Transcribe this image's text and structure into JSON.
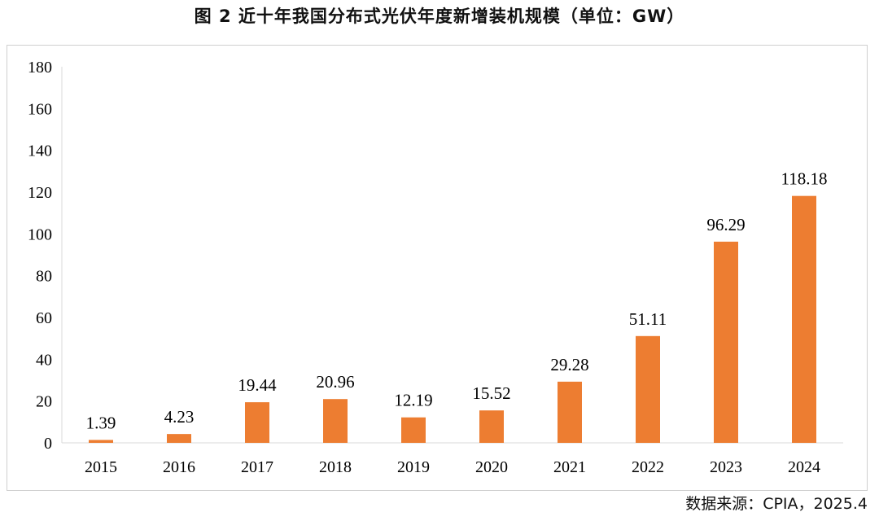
{
  "title": "图 2  近十年我国分布式光伏年度新增装机规模（单位：GW）",
  "source": "数据来源：CPIA，2025.4",
  "chart_data": {
    "type": "bar",
    "categories": [
      "2015",
      "2016",
      "2017",
      "2018",
      "2019",
      "2020",
      "2021",
      "2022",
      "2023",
      "2024"
    ],
    "values": [
      1.39,
      4.23,
      19.44,
      20.96,
      12.19,
      15.52,
      29.28,
      51.11,
      96.29,
      118.18
    ],
    "data_labels": [
      "1.39",
      "4.23",
      "19.44",
      "20.96",
      "12.19",
      "15.52",
      "29.28",
      "51.11",
      "96.29",
      "118.18"
    ],
    "y_ticks": [
      "0",
      "20",
      "40",
      "60",
      "80",
      "100",
      "120",
      "140",
      "160",
      "180"
    ],
    "ylim": [
      0,
      180
    ],
    "bar_color": "#ED7D31",
    "grid": false,
    "legend": "none",
    "xlabel": "",
    "ylabel": ""
  }
}
